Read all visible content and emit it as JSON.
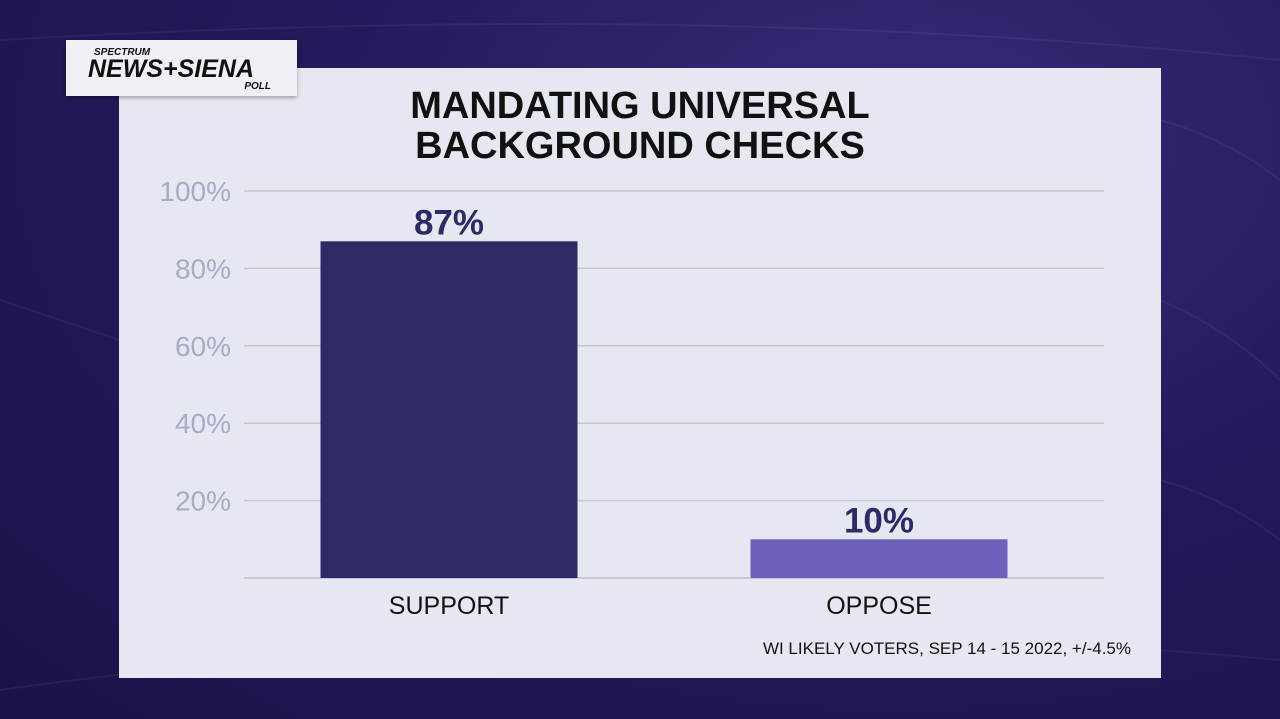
{
  "logo": {
    "top": "SPECTRUM",
    "main": "NEWS+SIENA",
    "sub": "POLL"
  },
  "source_note": "WI LIKELY VOTERS, SEP 14 - 15 2022, +/-4.5%",
  "colors": {
    "background": "#241a5c",
    "panel": "#e6e8f1",
    "series_support": "#2e2a66",
    "series_oppose": "#6e5fb9",
    "gridline": "#c6c6d8",
    "tick_label": "#a9a9c8",
    "value_label": "#2e2a66"
  },
  "chart_data": {
    "type": "bar",
    "title_lines": [
      "MANDATING UNIVERSAL",
      "BACKGROUND CHECKS"
    ],
    "categories": [
      "SUPPORT",
      "OPPOSE"
    ],
    "values": [
      87,
      10
    ],
    "value_labels": [
      "87%",
      "10%"
    ],
    "bar_colors": [
      "#2e2a66",
      "#6e5fb9"
    ],
    "ylim": [
      0,
      100
    ],
    "yticks": [
      20,
      40,
      60,
      80,
      100
    ],
    "ytick_labels": [
      "20%",
      "40%",
      "60%",
      "80%",
      "100%"
    ],
    "grid": true,
    "legend": "none"
  }
}
